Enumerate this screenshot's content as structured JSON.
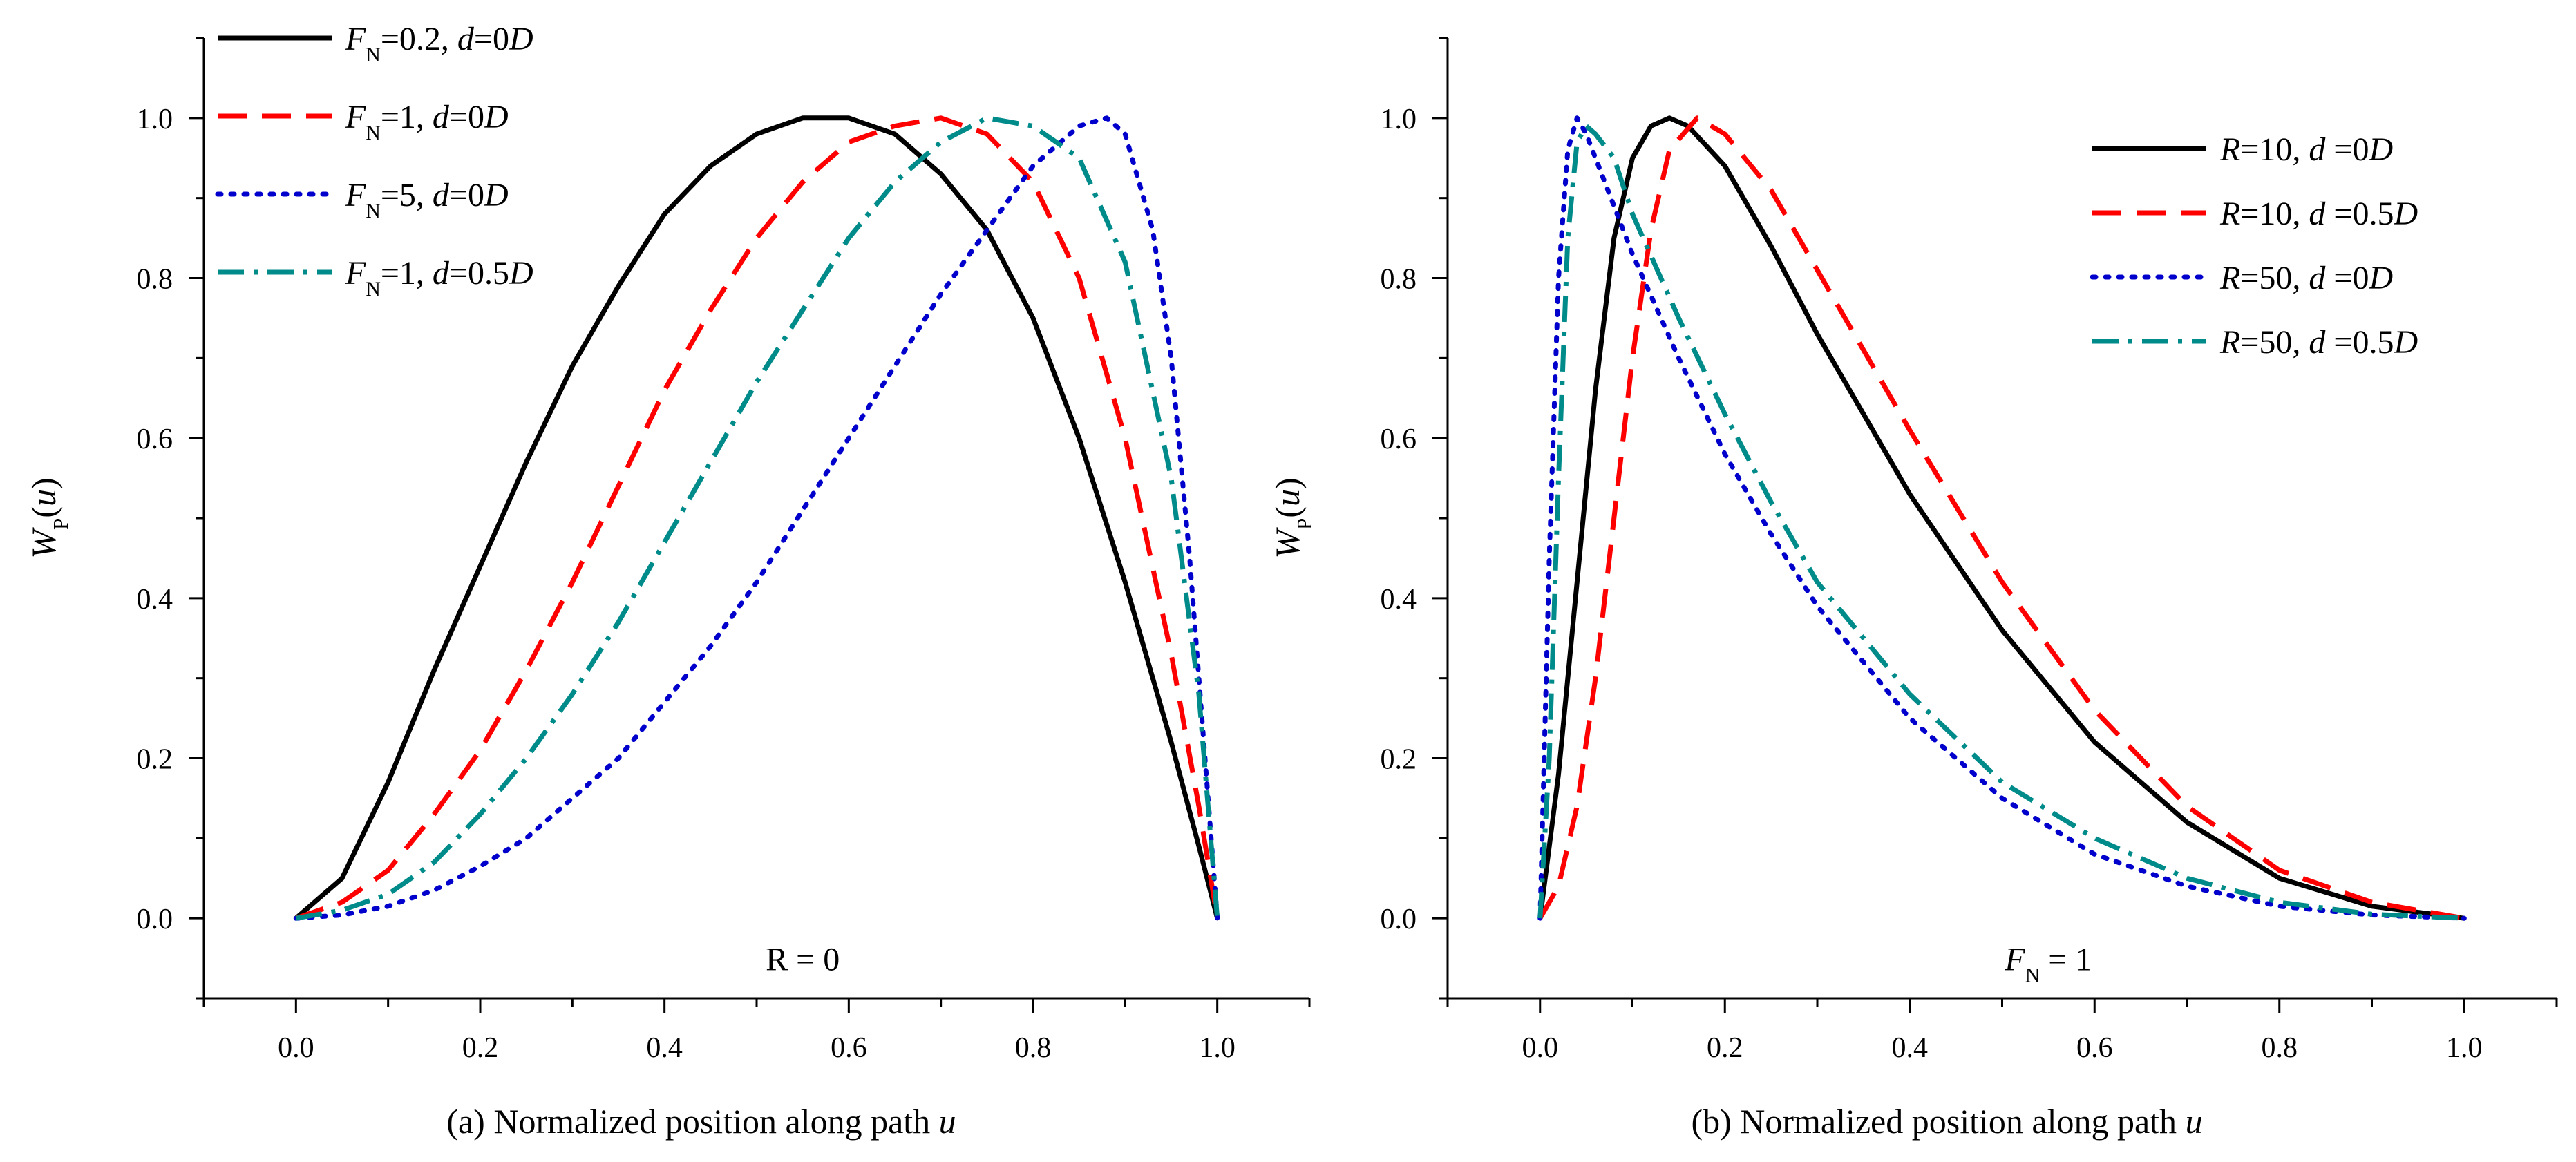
{
  "chart_data": [
    {
      "panel": "a",
      "type": "line",
      "caption": "(a) Normalized position along path u",
      "caption_parts": [
        "(a) Normalized position along path ",
        "u"
      ],
      "ylabel_parts": [
        "W",
        "P",
        "(",
        "u",
        ")"
      ],
      "xlabel": "Normalized position along path u",
      "ylabel": "WP(u)",
      "xlim": [
        -0.1,
        1.1
      ],
      "ylim": [
        -0.1,
        1.1
      ],
      "xticks": [
        0.0,
        0.2,
        0.4,
        0.6,
        0.8,
        1.0
      ],
      "xtick_labels": [
        "0.0",
        "0.2",
        "0.4",
        "0.6",
        "0.8",
        "1.0"
      ],
      "yticks": [
        0.0,
        0.2,
        0.4,
        0.6,
        0.8,
        1.0
      ],
      "ytick_labels": [
        "0.0",
        "0.2",
        "0.4",
        "0.6",
        "0.8",
        "1.0"
      ],
      "grid": false,
      "legend_position": "top-left",
      "annotation": "R = 0",
      "series": [
        {
          "name": "FN=0.2, d=0D",
          "legend": [
            [
              "F",
              "i"
            ],
            [
              "N",
              "sub"
            ],
            [
              "=0.2, ",
              "n"
            ],
            [
              "d",
              "i"
            ],
            [
              "=0",
              "n"
            ],
            [
              "D",
              "i"
            ]
          ],
          "color": "#000000",
          "dash": "solid",
          "x": [
            0.0,
            0.05,
            0.1,
            0.15,
            0.2,
            0.25,
            0.3,
            0.35,
            0.4,
            0.45,
            0.5,
            0.55,
            0.6,
            0.65,
            0.7,
            0.75,
            0.8,
            0.85,
            0.9,
            0.95,
            0.98,
            1.0
          ],
          "y": [
            0.0,
            0.05,
            0.17,
            0.31,
            0.44,
            0.57,
            0.69,
            0.79,
            0.88,
            0.94,
            0.98,
            1.0,
            1.0,
            0.98,
            0.93,
            0.86,
            0.75,
            0.6,
            0.42,
            0.22,
            0.09,
            0.0
          ]
        },
        {
          "name": "FN=1, d=0D",
          "legend": [
            [
              "F",
              "i"
            ],
            [
              "N",
              "sub"
            ],
            [
              "=1, ",
              "n"
            ],
            [
              "d",
              "i"
            ],
            [
              "=0",
              "n"
            ],
            [
              "D",
              "i"
            ]
          ],
          "color": "#ff0000",
          "dash": "long-dash",
          "x": [
            0.0,
            0.05,
            0.1,
            0.15,
            0.2,
            0.25,
            0.3,
            0.35,
            0.4,
            0.45,
            0.5,
            0.55,
            0.6,
            0.65,
            0.7,
            0.75,
            0.8,
            0.85,
            0.9,
            0.95,
            0.98,
            1.0
          ],
          "y": [
            0.0,
            0.02,
            0.06,
            0.13,
            0.21,
            0.31,
            0.42,
            0.54,
            0.66,
            0.76,
            0.85,
            0.92,
            0.97,
            0.99,
            1.0,
            0.98,
            0.92,
            0.8,
            0.6,
            0.33,
            0.14,
            0.0
          ]
        },
        {
          "name": "FN=5, d=0D",
          "legend": [
            [
              "F",
              "i"
            ],
            [
              "N",
              "sub"
            ],
            [
              "=5, ",
              "n"
            ],
            [
              "d",
              "i"
            ],
            [
              "=0",
              "n"
            ],
            [
              "D",
              "i"
            ]
          ],
          "color": "#0000cc",
          "dash": "dot",
          "x": [
            0.0,
            0.05,
            0.1,
            0.15,
            0.2,
            0.25,
            0.3,
            0.35,
            0.4,
            0.45,
            0.5,
            0.55,
            0.6,
            0.65,
            0.7,
            0.75,
            0.8,
            0.85,
            0.88,
            0.9,
            0.93,
            0.95,
            0.97,
            0.99,
            1.0
          ],
          "y": [
            0.0,
            0.004,
            0.015,
            0.035,
            0.065,
            0.1,
            0.15,
            0.2,
            0.27,
            0.34,
            0.42,
            0.51,
            0.6,
            0.69,
            0.78,
            0.86,
            0.94,
            0.99,
            1.0,
            0.98,
            0.86,
            0.7,
            0.45,
            0.15,
            0.0
          ]
        },
        {
          "name": "FN=1, d=0.5D",
          "legend": [
            [
              "F",
              "i"
            ],
            [
              "N",
              "sub"
            ],
            [
              "=1, ",
              "n"
            ],
            [
              "d",
              "i"
            ],
            [
              "=0.5",
              "n"
            ],
            [
              "D",
              "i"
            ]
          ],
          "color": "#008b8b",
          "dash": "dash-dot",
          "x": [
            0.0,
            0.05,
            0.1,
            0.15,
            0.2,
            0.25,
            0.3,
            0.35,
            0.4,
            0.45,
            0.5,
            0.55,
            0.6,
            0.65,
            0.7,
            0.75,
            0.8,
            0.85,
            0.9,
            0.95,
            0.98,
            1.0
          ],
          "y": [
            0.0,
            0.01,
            0.03,
            0.07,
            0.13,
            0.2,
            0.28,
            0.37,
            0.47,
            0.57,
            0.67,
            0.76,
            0.85,
            0.92,
            0.97,
            1.0,
            0.99,
            0.95,
            0.82,
            0.55,
            0.28,
            0.0
          ]
        }
      ]
    },
    {
      "panel": "b",
      "type": "line",
      "caption": "(b) Normalized position along path u",
      "caption_parts": [
        "(b) Normalized position along path ",
        "u"
      ],
      "ylabel_parts": [
        "W",
        "P",
        "(",
        "u",
        ")"
      ],
      "xlabel": "Normalized position along path u",
      "ylabel": "WP(u)",
      "xlim": [
        -0.1,
        1.1
      ],
      "ylim": [
        -0.1,
        1.1
      ],
      "xticks": [
        0.0,
        0.2,
        0.4,
        0.6,
        0.8,
        1.0
      ],
      "xtick_labels": [
        "0.0",
        "0.2",
        "0.4",
        "0.6",
        "0.8",
        "1.0"
      ],
      "yticks": [
        0.0,
        0.2,
        0.4,
        0.6,
        0.8,
        1.0
      ],
      "ytick_labels": [
        "0.0",
        "0.2",
        "0.4",
        "0.6",
        "0.8",
        "1.0"
      ],
      "grid": false,
      "legend_position": "top-right",
      "annotation": "FN = 1",
      "annotation_parts": [
        [
          "F",
          "i"
        ],
        [
          "N",
          "sub"
        ],
        [
          " = 1",
          "n"
        ]
      ],
      "series": [
        {
          "name": "R=10, d=0D",
          "legend": [
            [
              "R",
              "i"
            ],
            [
              "=10, ",
              "n"
            ],
            [
              "d",
              "i"
            ],
            [
              " =0",
              "n"
            ],
            [
              "D",
              "i"
            ]
          ],
          "color": "#000000",
          "dash": "solid",
          "x": [
            0.0,
            0.02,
            0.04,
            0.06,
            0.08,
            0.1,
            0.12,
            0.14,
            0.16,
            0.2,
            0.25,
            0.3,
            0.35,
            0.4,
            0.5,
            0.6,
            0.7,
            0.8,
            0.9,
            1.0
          ],
          "y": [
            0.0,
            0.18,
            0.42,
            0.66,
            0.85,
            0.95,
            0.99,
            1.0,
            0.99,
            0.94,
            0.84,
            0.73,
            0.63,
            0.53,
            0.36,
            0.22,
            0.12,
            0.05,
            0.015,
            0.0
          ]
        },
        {
          "name": "R=10, d=0.5D",
          "legend": [
            [
              "R",
              "i"
            ],
            [
              "=10, ",
              "n"
            ],
            [
              "d",
              "i"
            ],
            [
              " =0.5",
              "n"
            ],
            [
              "D",
              "i"
            ]
          ],
          "color": "#ff0000",
          "dash": "long-dash",
          "x": [
            0.0,
            0.02,
            0.04,
            0.06,
            0.08,
            0.1,
            0.12,
            0.14,
            0.17,
            0.2,
            0.25,
            0.3,
            0.35,
            0.4,
            0.5,
            0.6,
            0.7,
            0.8,
            0.9,
            1.0
          ],
          "y": [
            0.0,
            0.04,
            0.14,
            0.3,
            0.5,
            0.7,
            0.86,
            0.96,
            1.0,
            0.98,
            0.91,
            0.81,
            0.71,
            0.61,
            0.42,
            0.26,
            0.14,
            0.06,
            0.02,
            0.0
          ]
        },
        {
          "name": "R=50, d=0D",
          "legend": [
            [
              "R",
              "i"
            ],
            [
              "=50, ",
              "n"
            ],
            [
              "d",
              "i"
            ],
            [
              " =0",
              "n"
            ],
            [
              "D",
              "i"
            ]
          ],
          "color": "#0000cc",
          "dash": "dot",
          "x": [
            0.0,
            0.01,
            0.02,
            0.03,
            0.04,
            0.05,
            0.07,
            0.1,
            0.15,
            0.2,
            0.25,
            0.3,
            0.4,
            0.5,
            0.6,
            0.7,
            0.8,
            0.9,
            1.0
          ],
          "y": [
            0.0,
            0.45,
            0.8,
            0.96,
            1.0,
            0.98,
            0.92,
            0.83,
            0.7,
            0.58,
            0.48,
            0.39,
            0.25,
            0.15,
            0.08,
            0.04,
            0.015,
            0.004,
            0.0
          ]
        },
        {
          "name": "R=50, d=0.5D",
          "legend": [
            [
              "R",
              "i"
            ],
            [
              "=50, ",
              "n"
            ],
            [
              "d",
              "i"
            ],
            [
              " =0.5",
              "n"
            ],
            [
              "D",
              "i"
            ]
          ],
          "color": "#008b8b",
          "dash": "dash-dot",
          "x": [
            0.0,
            0.01,
            0.02,
            0.03,
            0.04,
            0.05,
            0.06,
            0.08,
            0.1,
            0.15,
            0.2,
            0.25,
            0.3,
            0.4,
            0.5,
            0.6,
            0.7,
            0.8,
            0.9,
            1.0
          ],
          "y": [
            0.0,
            0.2,
            0.55,
            0.85,
            0.97,
            0.99,
            0.98,
            0.95,
            0.88,
            0.75,
            0.63,
            0.52,
            0.42,
            0.28,
            0.17,
            0.1,
            0.05,
            0.02,
            0.005,
            0.0
          ]
        }
      ]
    }
  ]
}
